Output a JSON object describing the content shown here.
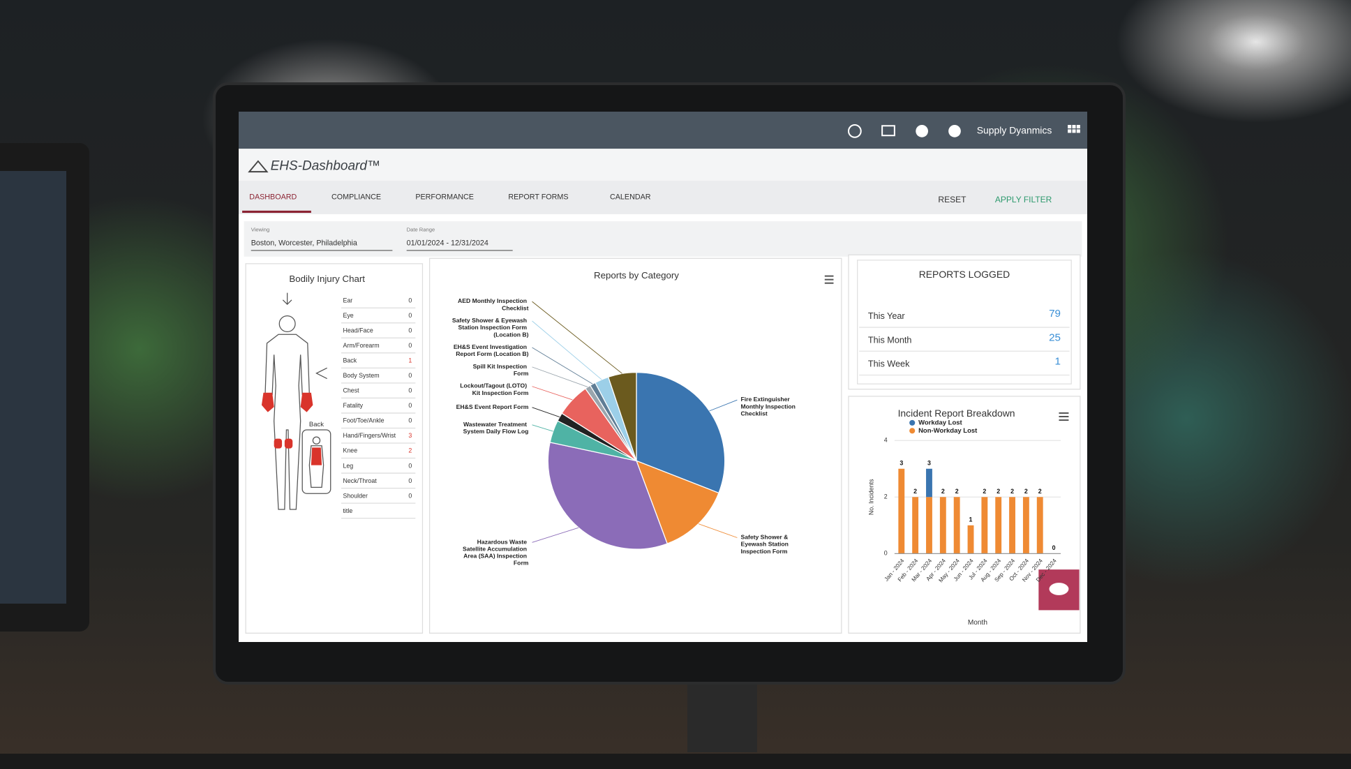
{
  "header": {
    "user": "Supply Dyanmics"
  },
  "brand": "EHS-Dashboard™",
  "tabs": [
    "DASHBOARD",
    "COMPLIANCE",
    "PERFORMANCE",
    "REPORT FORMS",
    "CALENDAR"
  ],
  "actions": [
    "RESET",
    "APPLY FILTER"
  ],
  "filters": [
    {
      "label": "Viewing",
      "value": "Boston, Worcester, Philadelphia"
    },
    {
      "label": "Date Range",
      "value": "01/01/2024 - 12/31/2024"
    }
  ],
  "body_chart": {
    "title": "Bodily Injury Chart",
    "back_label": "Back",
    "rows": [
      {
        "label": "Ear",
        "value": 0
      },
      {
        "label": "Eye",
        "value": 0
      },
      {
        "label": "Head/Face",
        "value": 0
      },
      {
        "label": "Arm/Forearm",
        "value": 0
      },
      {
        "label": "Back",
        "value": 1
      },
      {
        "label": "Body System",
        "value": 0
      },
      {
        "label": "Chest",
        "value": 0
      },
      {
        "label": "Fatality",
        "value": 0
      },
      {
        "label": "Foot/Toe/Ankle",
        "value": 0
      },
      {
        "label": "Hand/Fingers/Wrist",
        "value": 3
      },
      {
        "label": "Knee",
        "value": 2
      },
      {
        "label": "Leg",
        "value": 0
      },
      {
        "label": "Neck/Throat",
        "value": 0
      },
      {
        "label": "Shoulder",
        "value": 0
      },
      {
        "label": "title",
        "value": null
      }
    ]
  },
  "reports_logged": {
    "title": "REPORTS LOGGED",
    "rows": [
      {
        "label": "This Year",
        "value": 79
      },
      {
        "label": "This Month",
        "value": 25
      },
      {
        "label": "This Week",
        "value": 1
      }
    ]
  },
  "chart_data": [
    {
      "type": "pie",
      "title": "Reports by Category",
      "categories": [
        "Fire Extinguisher Monthly Inspection Checklist",
        "Safety Shower & Eyewash Station Inspection Form",
        "Hazardous Waste Satellite Accumulation Area (SAA) Inspection Form",
        "Wastewater Treatment System Daily Flow Log",
        "EH&S Event Report Form",
        "Lockout/Tagout (LOTO) Kit Inspection Form",
        "Spill Kit Inspection Form",
        "EH&S Event Investigation Report Form (Location B)",
        "Safety Shower & Eyewash Station Inspection Form (Location B)",
        "AED Monthly Inspection Checklist"
      ],
      "values": [
        30,
        13,
        33,
        4,
        1.5,
        6,
        1,
        1,
        2.5,
        5
      ],
      "colors": [
        "#3a75b0",
        "#ef8a33",
        "#8b6cb8",
        "#4fb3a5",
        "#222222",
        "#e8635e",
        "#9aa5ad",
        "#5f7d95",
        "#9ccfe8",
        "#6b5a1e"
      ]
    },
    {
      "type": "bar",
      "stacked": true,
      "title": "Incident Report Breakdown",
      "categories": [
        "Jan - 2024",
        "Feb - 2024",
        "Mar - 2024",
        "Apr - 2024",
        "May - 2024",
        "Jun - 2024",
        "Jul - 2024",
        "Aug - 2024",
        "Sep - 2024",
        "Oct - 2024",
        "Nov - 2024",
        "Dec - 2024"
      ],
      "series": [
        {
          "name": "Workday Lost",
          "color": "#3a75b0",
          "values": [
            0,
            0,
            1,
            0,
            0,
            0,
            0,
            0,
            0,
            0,
            0,
            0
          ]
        },
        {
          "name": "Non-Workday Lost",
          "color": "#ef8a33",
          "values": [
            3,
            2,
            2,
            2,
            2,
            1,
            2,
            2,
            2,
            2,
            2,
            0
          ]
        }
      ],
      "stack_labels": [
        3,
        2,
        3,
        2,
        2,
        1,
        2,
        2,
        2,
        2,
        2,
        0
      ],
      "ylim": [
        0,
        4
      ],
      "yticks": [
        0,
        2,
        4
      ],
      "grid": true,
      "y_label": "No. Incidents",
      "x_label": "Month"
    }
  ]
}
